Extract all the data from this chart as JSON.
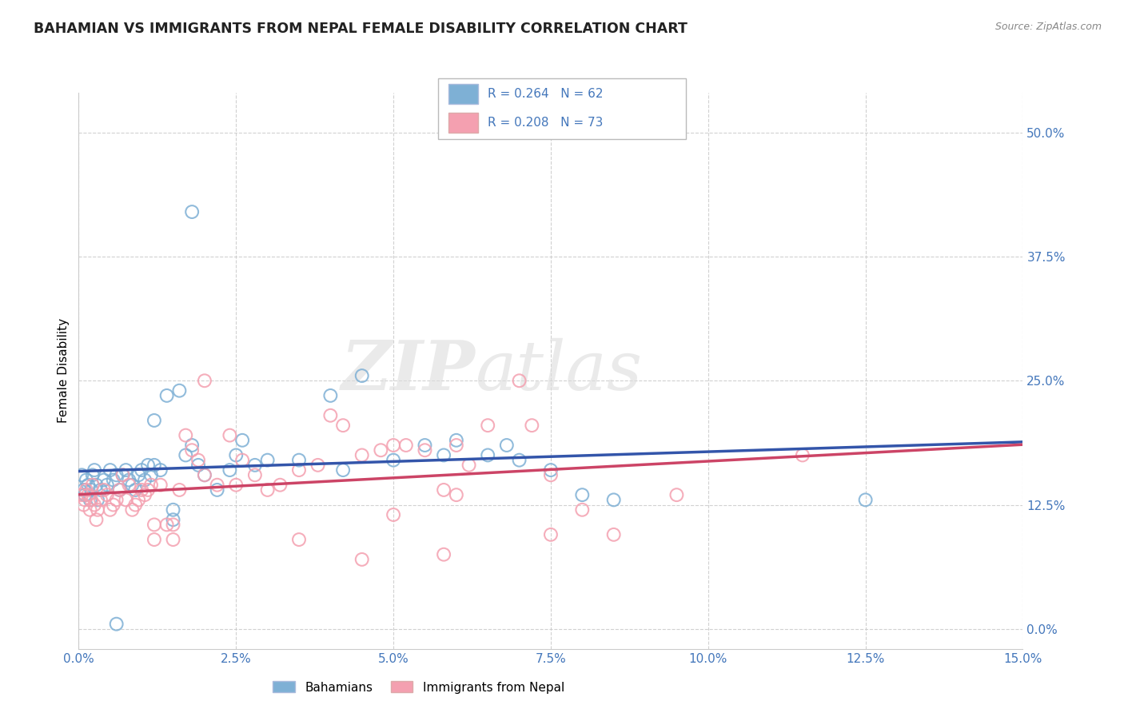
{
  "title": "BAHAMIAN VS IMMIGRANTS FROM NEPAL FEMALE DISABILITY CORRELATION CHART",
  "source": "Source: ZipAtlas.com",
  "xlabel_vals": [
    0.0,
    2.5,
    5.0,
    7.5,
    10.0,
    12.5,
    15.0
  ],
  "ylabel_vals": [
    0.0,
    12.5,
    25.0,
    37.5,
    50.0
  ],
  "xlim": [
    0.0,
    15.0
  ],
  "ylim": [
    -2.0,
    54.0
  ],
  "bahamian_R": 0.264,
  "bahamian_N": 62,
  "nepal_R": 0.208,
  "nepal_N": 73,
  "blue_color": "#7EB0D5",
  "pink_color": "#F4A0B0",
  "blue_line_color": "#3355AA",
  "pink_line_color": "#CC4466",
  "watermark_zip": "ZIP",
  "watermark_atlas": "atlas",
  "legend_label1": "Bahamians",
  "legend_label2": "Immigrants from Nepal",
  "tick_color": "#4477BB",
  "ylabel_text": "Female Disability",
  "bahamian_x": [
    0.05,
    0.08,
    0.1,
    0.12,
    0.15,
    0.18,
    0.2,
    0.22,
    0.25,
    0.28,
    0.3,
    0.35,
    0.4,
    0.45,
    0.5,
    0.55,
    0.6,
    0.65,
    0.7,
    0.75,
    0.8,
    0.85,
    0.9,
    0.95,
    1.0,
    1.05,
    1.1,
    1.15,
    1.2,
    1.3,
    1.4,
    1.5,
    1.6,
    1.7,
    1.8,
    1.9,
    2.0,
    2.2,
    2.4,
    2.6,
    2.8,
    3.0,
    3.5,
    4.0,
    4.5,
    5.0,
    5.5,
    6.0,
    6.5,
    7.0,
    7.5,
    8.0,
    8.5,
    1.8,
    2.5,
    4.2,
    5.8,
    6.8,
    12.5,
    1.2,
    1.5,
    0.6
  ],
  "bahamian_y": [
    15.5,
    14.0,
    13.5,
    15.0,
    14.5,
    13.0,
    14.0,
    15.5,
    16.0,
    14.5,
    13.0,
    14.0,
    15.0,
    14.5,
    16.0,
    15.0,
    15.5,
    14.0,
    15.5,
    16.0,
    15.0,
    14.5,
    14.0,
    15.5,
    16.0,
    15.0,
    16.5,
    15.5,
    21.0,
    16.0,
    23.5,
    12.0,
    24.0,
    17.5,
    18.5,
    16.5,
    15.5,
    14.0,
    16.0,
    19.0,
    16.5,
    17.0,
    17.0,
    23.5,
    25.5,
    17.0,
    18.5,
    19.0,
    17.5,
    17.0,
    16.0,
    13.5,
    13.0,
    42.0,
    17.5,
    16.0,
    17.5,
    18.5,
    13.0,
    16.5,
    11.0,
    0.5
  ],
  "nepal_x": [
    0.05,
    0.08,
    0.1,
    0.12,
    0.15,
    0.18,
    0.2,
    0.22,
    0.25,
    0.28,
    0.3,
    0.35,
    0.4,
    0.45,
    0.5,
    0.55,
    0.6,
    0.65,
    0.7,
    0.75,
    0.8,
    0.85,
    0.9,
    0.95,
    1.0,
    1.05,
    1.1,
    1.15,
    1.2,
    1.3,
    1.4,
    1.5,
    1.6,
    1.7,
    1.8,
    1.9,
    2.0,
    2.2,
    2.4,
    2.6,
    2.8,
    3.0,
    3.2,
    3.5,
    3.8,
    4.0,
    4.2,
    4.5,
    4.8,
    5.0,
    5.2,
    5.5,
    5.8,
    6.0,
    6.2,
    6.5,
    7.0,
    7.2,
    7.5,
    8.0,
    8.5,
    9.5,
    11.5,
    1.2,
    1.5,
    2.0,
    4.5,
    5.8,
    6.0,
    7.5,
    2.5,
    3.5,
    5.0
  ],
  "nepal_y": [
    13.5,
    12.5,
    13.0,
    14.0,
    13.5,
    12.0,
    13.0,
    14.5,
    12.5,
    11.0,
    12.0,
    13.0,
    14.0,
    13.5,
    12.0,
    12.5,
    13.0,
    14.0,
    15.5,
    13.0,
    14.5,
    12.0,
    12.5,
    13.0,
    14.0,
    13.5,
    14.0,
    14.5,
    10.5,
    14.5,
    10.5,
    10.5,
    14.0,
    19.5,
    18.0,
    17.0,
    15.5,
    14.5,
    19.5,
    17.0,
    15.5,
    14.0,
    14.5,
    16.0,
    16.5,
    21.5,
    20.5,
    17.5,
    18.0,
    18.5,
    18.5,
    18.0,
    14.0,
    18.5,
    16.5,
    20.5,
    25.0,
    20.5,
    15.5,
    12.0,
    9.5,
    13.5,
    17.5,
    9.0,
    9.0,
    25.0,
    7.0,
    7.5,
    13.5,
    9.5,
    14.5,
    9.0,
    11.5
  ]
}
